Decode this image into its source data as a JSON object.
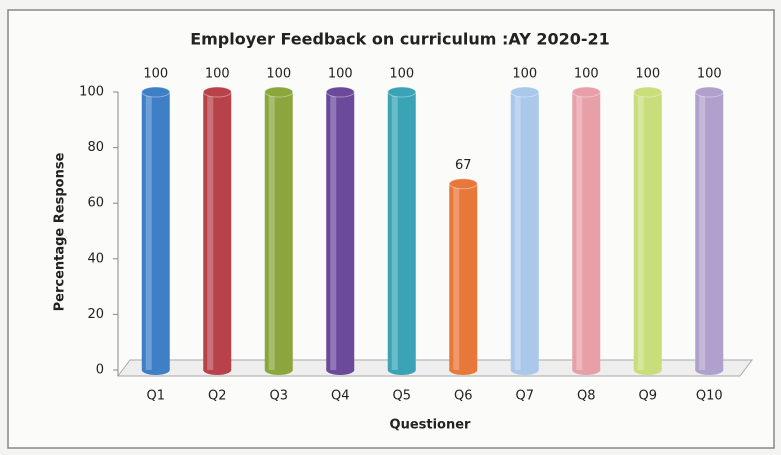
{
  "chart_data": {
    "type": "bar",
    "title": "Employer Feedback on curriculum :AY 2020-21",
    "xlabel": "Questioner",
    "ylabel": "Percentage Response",
    "categories": [
      "Q1",
      "Q2",
      "Q3",
      "Q4",
      "Q5",
      "Q6",
      "Q7",
      "Q8",
      "Q9",
      "Q10"
    ],
    "values": [
      100,
      100,
      100,
      100,
      100,
      67,
      100,
      100,
      100,
      100
    ],
    "colors": [
      "#3f7fc6",
      "#b8424a",
      "#8aa63c",
      "#6b4a9c",
      "#3aa3b5",
      "#e8773a",
      "#a9c8ea",
      "#e8a0a8",
      "#c8de7a",
      "#b0a0cc"
    ],
    "ylim": [
      0,
      100
    ],
    "yticks": [
      0,
      20,
      40,
      60,
      80,
      100
    ]
  }
}
